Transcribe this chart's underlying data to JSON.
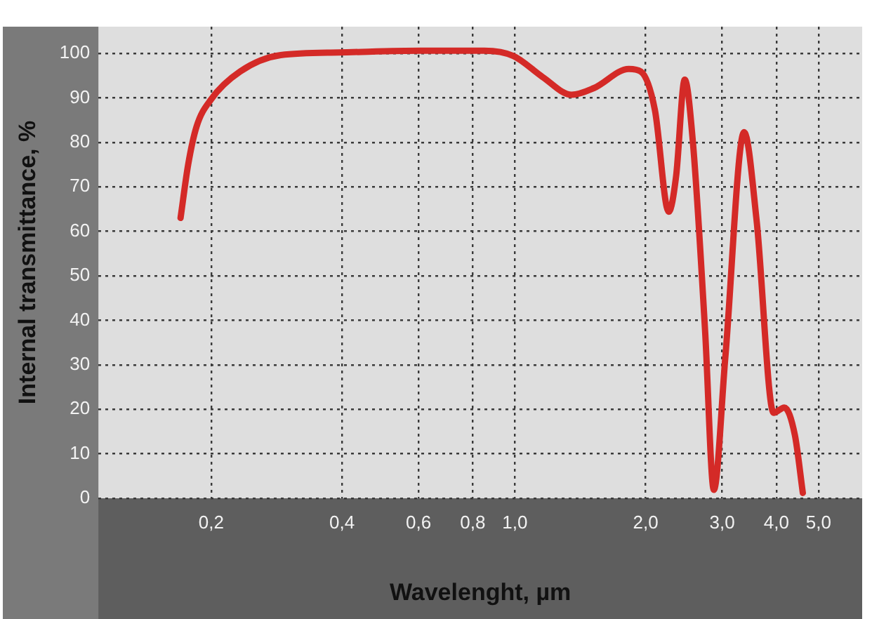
{
  "chart_data": {
    "type": "line",
    "xlabel": "Wavelenght, µm",
    "ylabel": "Internal transmittance, %",
    "log": "x",
    "grid": true,
    "line_style": "solid",
    "xlim": [
      0.11,
      6.3
    ],
    "ylim": [
      0,
      106
    ],
    "xticks": [
      {
        "value": 0.2,
        "label": "0,2"
      },
      {
        "value": 0.4,
        "label": "0,4"
      },
      {
        "value": 0.6,
        "label": "0,6"
      },
      {
        "value": 0.8,
        "label": "0,8"
      },
      {
        "value": 1.0,
        "label": "1,0"
      },
      {
        "value": 2.0,
        "label": "2,0"
      },
      {
        "value": 3.0,
        "label": "3,0"
      },
      {
        "value": 4.0,
        "label": "4,0"
      },
      {
        "value": 5.0,
        "label": "5,0"
      }
    ],
    "yticks": [
      0,
      10,
      20,
      30,
      40,
      50,
      60,
      70,
      80,
      90,
      100
    ],
    "series": [
      {
        "color": "#d42a27",
        "x": [
          0.17,
          0.177,
          0.185,
          0.2,
          0.233,
          0.289,
          0.394,
          0.606,
          0.851,
          0.993,
          1.158,
          1.351,
          1.52,
          1.83,
          1.95,
          2.1,
          2.26,
          2.35,
          2.46,
          2.57,
          2.74,
          2.87,
          3.05,
          3.37,
          3.6,
          3.94,
          4.17,
          4.41,
          4.6
        ],
        "values": [
          63,
          75,
          83.5,
          89.7,
          95.9,
          99.6,
          100.2,
          100.6,
          100.6,
          99.4,
          94.7,
          90.7,
          92.2,
          96.5,
          95.9,
          87.3,
          64.4,
          72.4,
          94.1,
          79.8,
          37.7,
          1.9,
          31.6,
          82.3,
          62.5,
          19.2,
          20.4,
          14.2,
          1.2
        ]
      }
    ]
  }
}
